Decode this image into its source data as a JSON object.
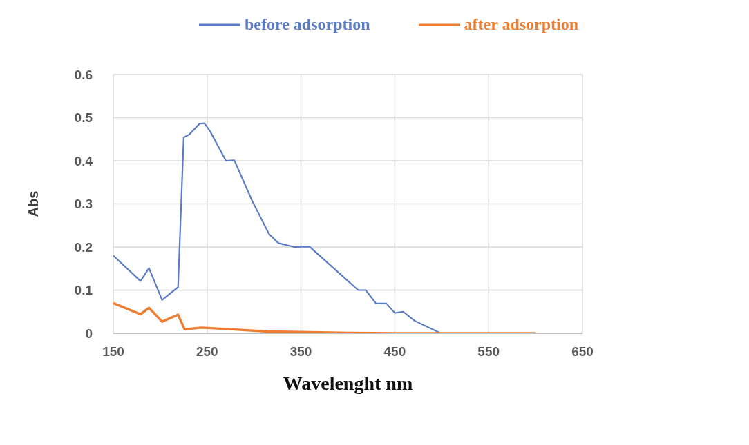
{
  "chart_data": {
    "type": "line",
    "xlabel": "Wavelenght nm",
    "ylabel": "Abs",
    "xlim": [
      150,
      650
    ],
    "xticks": [
      150,
      250,
      350,
      450,
      550,
      650
    ],
    "ylim": [
      0,
      0.6
    ],
    "yticks": [
      0,
      0.1,
      0.2,
      0.3,
      0.4,
      0.5,
      0.6
    ],
    "grid": true,
    "legend": "top",
    "series": [
      {
        "name": "before adsorption",
        "color": "#5b7cc4",
        "x": [
          150,
          179,
          188,
          202,
          219,
          225,
          231,
          242,
          247,
          253,
          270,
          279,
          298,
          316,
          326,
          343,
          359,
          411,
          419,
          430,
          441,
          450,
          459,
          471,
          499,
          550,
          600
        ],
        "values": [
          0.18,
          0.121,
          0.151,
          0.077,
          0.107,
          0.454,
          0.461,
          0.486,
          0.487,
          0.469,
          0.4,
          0.401,
          0.307,
          0.23,
          0.209,
          0.2,
          0.201,
          0.1,
          0.1,
          0.069,
          0.069,
          0.047,
          0.05,
          0.029,
          0,
          0,
          0
        ]
      },
      {
        "name": "after adsorption",
        "color": "#ed7d31",
        "x": [
          150,
          179,
          188,
          202,
          219,
          226,
          244,
          277,
          314,
          350,
          400,
          450,
          500,
          600
        ],
        "values": [
          0.07,
          0.044,
          0.059,
          0.027,
          0.043,
          0.009,
          0.013,
          0.009,
          0.004,
          0.003,
          0.001,
          0,
          0,
          0
        ]
      }
    ]
  }
}
